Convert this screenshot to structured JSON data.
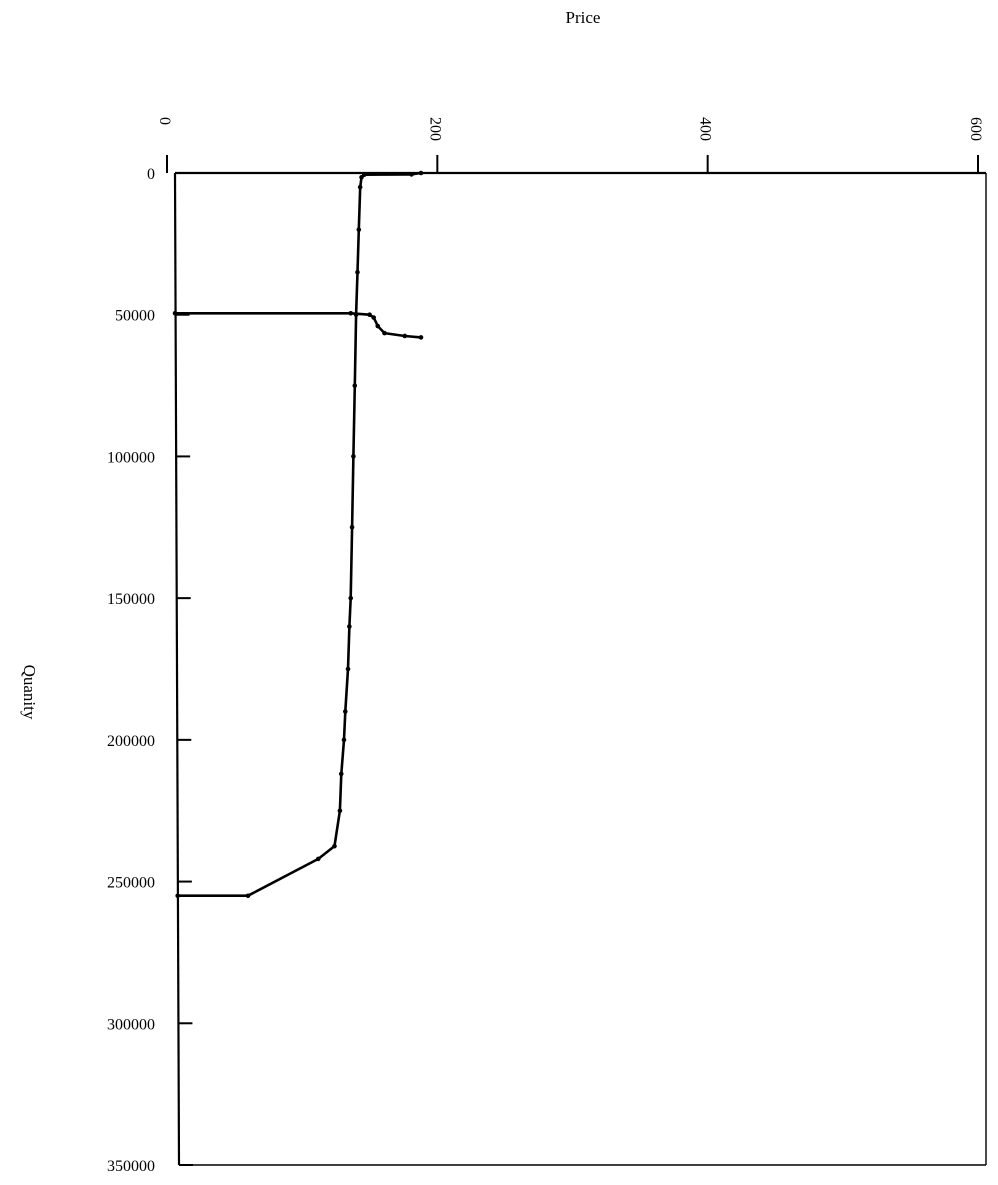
{
  "chart_data": {
    "type": "line",
    "orientation": "rotated",
    "xlabel": "Price",
    "ylabel": "Quanity",
    "xlim": [
      0,
      600
    ],
    "ylim": [
      0,
      350000
    ],
    "x_axis_position": "top",
    "x_ticks": [
      {
        "value": 0,
        "label": "0"
      },
      {
        "value": 200,
        "label": "200"
      },
      {
        "value": 400,
        "label": "400"
      },
      {
        "value": 600,
        "label": "600"
      }
    ],
    "y_ticks": [
      {
        "value": 0,
        "label": "0"
      },
      {
        "value": 50000,
        "label": "50000"
      },
      {
        "value": 100000,
        "label": "100000"
      },
      {
        "value": 150000,
        "label": "150000"
      },
      {
        "value": 200000,
        "label": "200000"
      },
      {
        "value": 250000,
        "label": "250000"
      },
      {
        "value": 300000,
        "label": "300000"
      },
      {
        "value": 350000,
        "label": "350000"
      }
    ],
    "grid": false,
    "series": [
      {
        "points": [
          {
            "x": 182,
            "y": 0
          },
          {
            "x": 175,
            "y": 500
          },
          {
            "x": 140,
            "y": 600
          },
          {
            "x": 138,
            "y": 1500
          },
          {
            "x": 137,
            "y": 5000
          },
          {
            "x": 136,
            "y": 20000
          },
          {
            "x": 135,
            "y": 35000
          },
          {
            "x": 134,
            "y": 50000
          },
          {
            "x": 133,
            "y": 75000
          },
          {
            "x": 132,
            "y": 100000
          },
          {
            "x": 131,
            "y": 125000
          },
          {
            "x": 130,
            "y": 150000
          },
          {
            "x": 129,
            "y": 160000
          },
          {
            "x": 128,
            "y": 175000
          },
          {
            "x": 126,
            "y": 190000
          },
          {
            "x": 125,
            "y": 200000
          },
          {
            "x": 123,
            "y": 212000
          },
          {
            "x": 122,
            "y": 225000
          },
          {
            "x": 118,
            "y": 237500
          },
          {
            "x": 106,
            "y": 242000
          },
          {
            "x": 54,
            "y": 255000
          },
          {
            "x": 2,
            "y": 255000
          }
        ]
      },
      {
        "points": [
          {
            "x": 0,
            "y": 49500
          },
          {
            "x": 130,
            "y": 49500
          },
          {
            "x": 144,
            "y": 50000
          },
          {
            "x": 147,
            "y": 51000
          },
          {
            "x": 150,
            "y": 54000
          },
          {
            "x": 155,
            "y": 56500
          },
          {
            "x": 170,
            "y": 57500
          },
          {
            "x": 182,
            "y": 58000
          }
        ]
      }
    ]
  }
}
